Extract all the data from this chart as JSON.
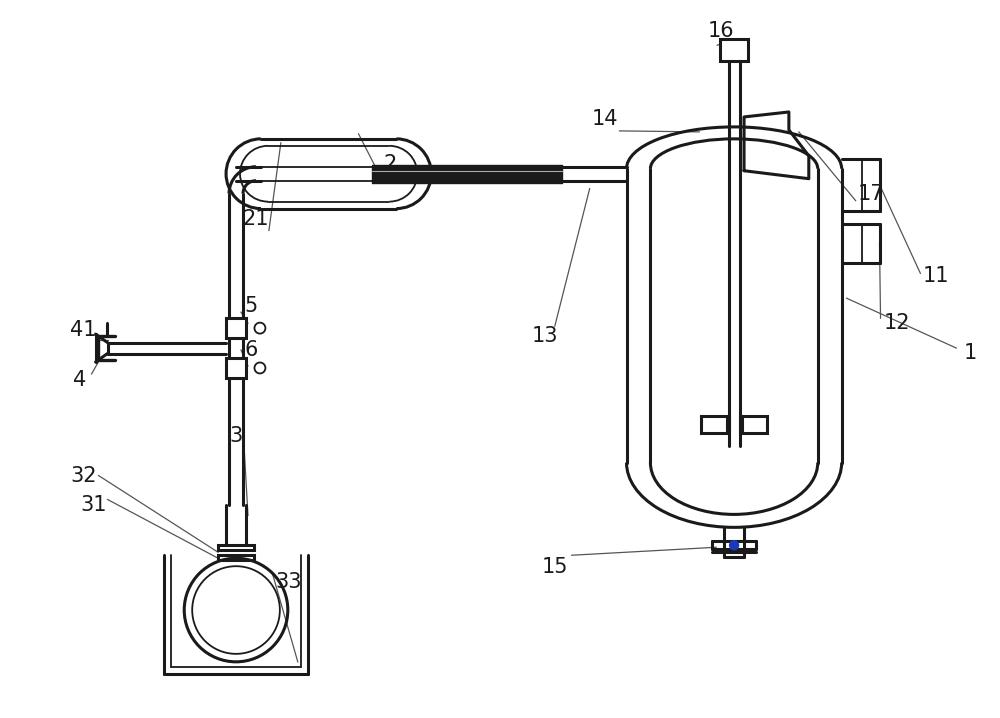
{
  "bg_color": "#ffffff",
  "line_color": "#1a1a1a",
  "lw": 2.2,
  "lw_thin": 1.3,
  "font_size": 15
}
